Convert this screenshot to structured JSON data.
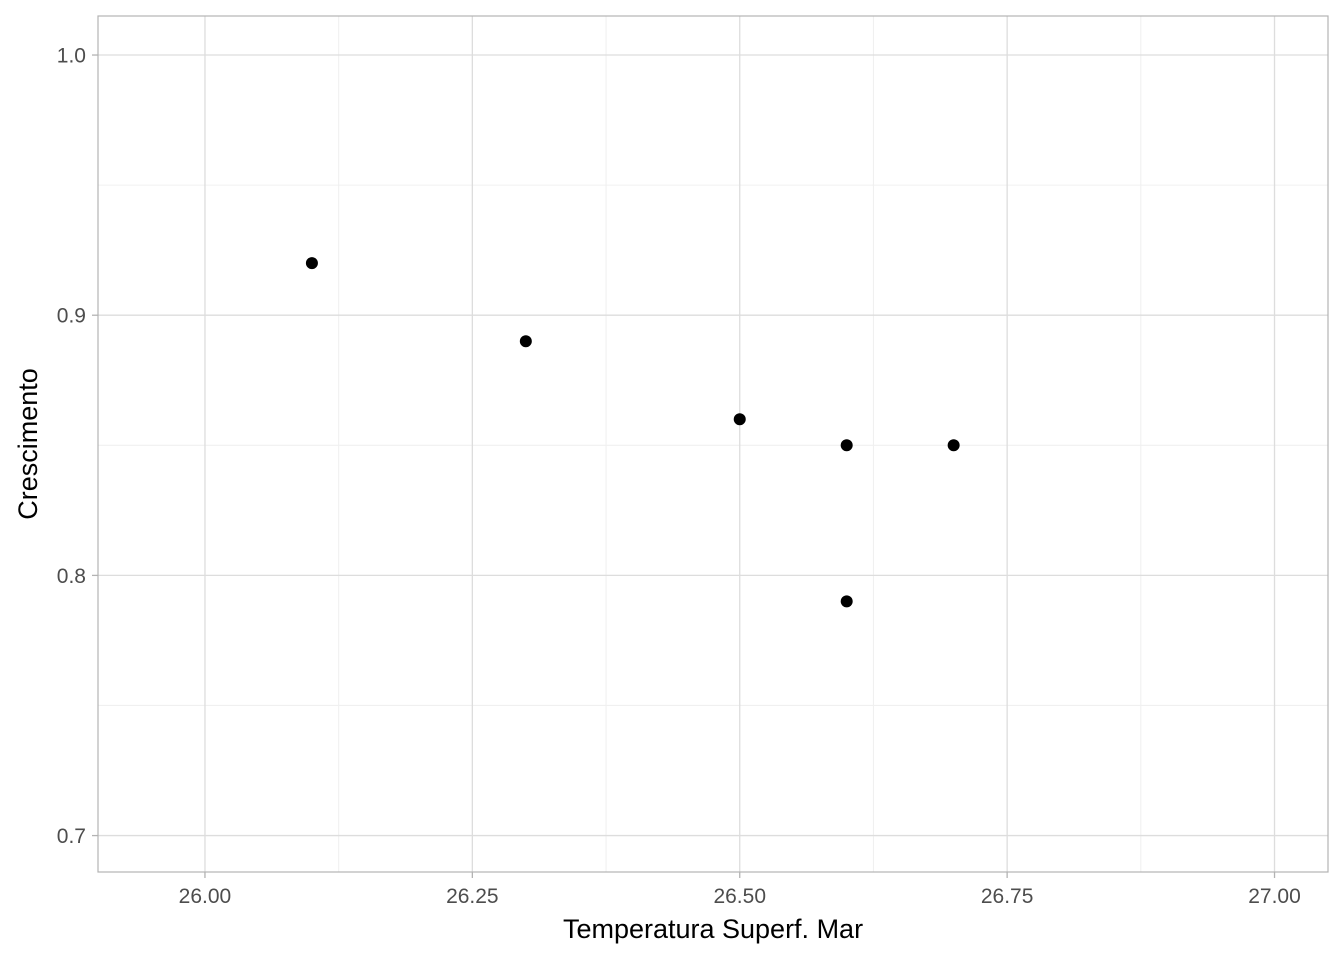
{
  "chart_data": {
    "type": "scatter",
    "title": "",
    "xlabel": "Temperatura Superf. Mar",
    "ylabel": "Crescimento",
    "xlim": [
      25.9,
      27.05
    ],
    "ylim": [
      0.686,
      1.015
    ],
    "x_ticks": [
      26.0,
      26.25,
      26.5,
      26.75,
      27.0
    ],
    "x_tick_labels": [
      "26.00",
      "26.25",
      "26.50",
      "26.75",
      "27.00"
    ],
    "x_minor_ticks": [
      26.125,
      26.375,
      26.625,
      26.875
    ],
    "y_ticks": [
      0.7,
      0.8,
      0.9,
      1.0
    ],
    "y_tick_labels": [
      "0.7",
      "0.8",
      "0.9",
      "1.0"
    ],
    "y_minor_ticks": [
      0.75,
      0.85,
      0.95
    ],
    "grid": true,
    "legend": "none",
    "colors": {
      "point": "#000000",
      "grid_major": "#dddddd",
      "grid_minor": "#f0f0f0",
      "border": "#b3b3b3",
      "tick_label": "#4d4d4d",
      "axis_title": "#000000"
    },
    "series": [
      {
        "x": [
          26.1,
          26.3,
          26.5,
          26.6,
          26.7,
          26.6
        ],
        "y": [
          0.92,
          0.89,
          0.86,
          0.85,
          0.85,
          0.79
        ]
      }
    ]
  }
}
